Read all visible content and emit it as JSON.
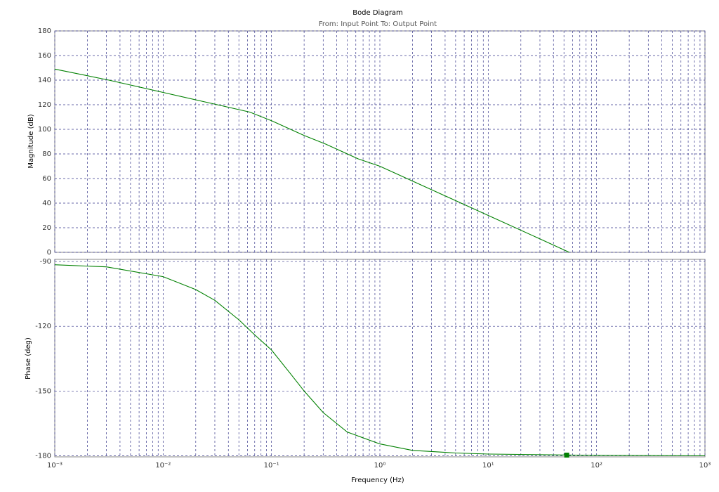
{
  "chart_data": [
    {
      "type": "line",
      "title": "Bode Diagram",
      "subtitle": "From: Input Point  To: Output Point",
      "ylabel": "Magnitude (dB)",
      "xscale": "log",
      "xlim": [
        0.001,
        1000
      ],
      "ylim": [
        0,
        180
      ],
      "yticks": [
        0,
        20,
        40,
        60,
        80,
        100,
        120,
        140,
        160,
        180
      ],
      "grid": true,
      "color": "#008000",
      "x": [
        0.001,
        0.00316,
        0.01,
        0.0316,
        0.0631,
        0.1,
        0.2,
        0.316,
        0.631,
        1,
        3.16,
        10,
        31.6,
        56
      ],
      "values": [
        149,
        140,
        130,
        120,
        114,
        107,
        95,
        88,
        76,
        70,
        50,
        30,
        10,
        0
      ]
    },
    {
      "type": "line",
      "ylabel": "Phase (deg)",
      "xlabel": "Frequency  (Hz)",
      "xscale": "log",
      "xlim": [
        0.001,
        1000
      ],
      "ylim": [
        -180.5,
        -89
      ],
      "yticks": [
        -180,
        -150,
        -120,
        -90
      ],
      "grid": true,
      "color": "#008000",
      "xticks": [
        {
          "value": 0.001,
          "label": "10⁻³"
        },
        {
          "value": 0.01,
          "label": "10⁻²"
        },
        {
          "value": 0.1,
          "label": "10⁻¹"
        },
        {
          "value": 1,
          "label": "10⁰"
        },
        {
          "value": 10,
          "label": "10¹"
        },
        {
          "value": 100,
          "label": "10²"
        },
        {
          "value": 1000,
          "label": "10³"
        }
      ],
      "x": [
        0.001,
        0.003,
        0.01,
        0.02,
        0.03,
        0.05,
        0.07,
        0.1,
        0.15,
        0.2,
        0.3,
        0.5,
        1,
        2,
        5,
        10,
        100,
        1000
      ],
      "values": [
        -91.5,
        -92.5,
        -97,
        -103,
        -108,
        -117,
        -124,
        -131,
        -142,
        -150,
        -160,
        -169,
        -174.5,
        -177.5,
        -178.7,
        -179.2,
        -179.8,
        -180
      ],
      "markers": [
        {
          "x": 53,
          "y": -179.7
        }
      ]
    }
  ]
}
